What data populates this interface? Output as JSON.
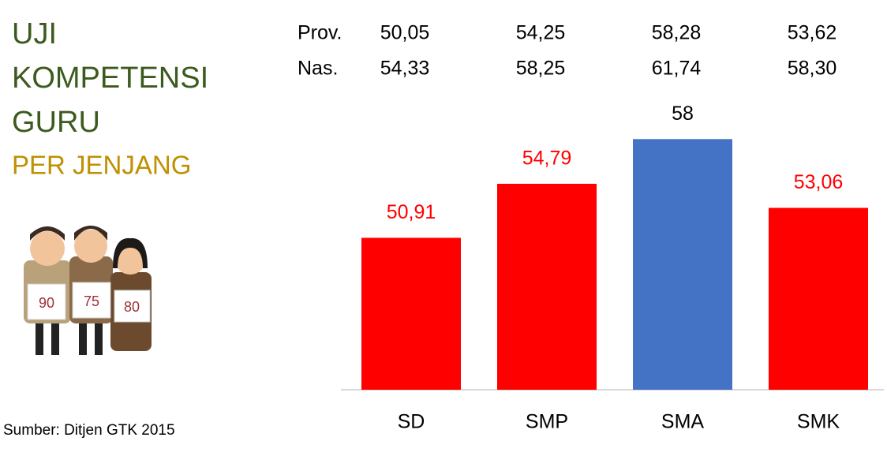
{
  "chart_data": {
    "type": "bar",
    "title_lines": [
      "UJI",
      "KOMPETENSI",
      "GURU"
    ],
    "subtitle": "PER JENJANG",
    "source": "Sumber: Ditjen GTK 2015",
    "table": {
      "rows": [
        {
          "label": "Prov.",
          "cells": [
            "50,05",
            "54,25",
            "58,28",
            "53,62"
          ]
        },
        {
          "label": "Nas.",
          "cells": [
            "54,33",
            "58,25",
            "61,74",
            "58,30"
          ]
        }
      ]
    },
    "categories": [
      "SD",
      "SMP",
      "SMA",
      "SMK"
    ],
    "values": [
      50.91,
      54.79,
      58,
      53.06
    ],
    "value_labels": [
      "50,91",
      "54,79",
      "58",
      "53,06"
    ],
    "colors": [
      "#ff0000",
      "#ff0000",
      "#4472c4",
      "#ff0000"
    ],
    "value_label_colors": [
      "#ff0000",
      "#ff0000",
      "#000000",
      "#ff0000"
    ],
    "ylim": [
      40,
      60
    ],
    "illustration_cards": [
      "90",
      "75",
      "80"
    ]
  }
}
